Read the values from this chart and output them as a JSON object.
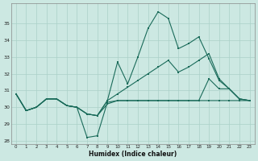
{
  "background_color": "#cce8e2",
  "grid_color": "#aad0c8",
  "line_color": "#1a6b5a",
  "xlim": [
    -0.5,
    23.5
  ],
  "ylim": [
    27.8,
    36.2
  ],
  "xticks": [
    0,
    1,
    2,
    3,
    4,
    5,
    6,
    7,
    8,
    9,
    10,
    11,
    12,
    13,
    14,
    15,
    16,
    17,
    18,
    19,
    20,
    21,
    22,
    23
  ],
  "yticks": [
    28,
    29,
    30,
    31,
    32,
    33,
    34,
    35
  ],
  "xlabel": "Humidex (Indice chaleur)",
  "lines": [
    [
      30.8,
      29.8,
      30.0,
      30.5,
      30.5,
      30.1,
      30.0,
      28.2,
      28.3,
      30.3,
      30.4,
      30.4,
      30.4,
      30.4,
      30.4,
      30.4,
      30.4,
      30.4,
      30.4,
      30.4,
      30.4,
      30.4,
      30.4,
      30.4
    ],
    [
      30.8,
      29.8,
      30.0,
      30.5,
      30.5,
      30.1,
      30.0,
      29.6,
      29.5,
      30.4,
      32.7,
      31.4,
      33.0,
      34.7,
      35.7,
      35.3,
      33.5,
      33.8,
      34.2,
      32.9,
      31.6,
      31.1,
      30.5,
      30.4
    ],
    [
      30.8,
      29.8,
      30.0,
      30.5,
      30.5,
      30.1,
      30.0,
      29.6,
      29.5,
      30.4,
      30.8,
      31.2,
      31.6,
      32.0,
      32.4,
      32.8,
      32.1,
      32.4,
      32.8,
      33.2,
      31.7,
      31.1,
      30.5,
      30.4
    ],
    [
      30.8,
      29.8,
      30.0,
      30.5,
      30.5,
      30.1,
      30.0,
      29.6,
      29.5,
      30.2,
      30.4,
      30.4,
      30.4,
      30.4,
      30.4,
      30.4,
      30.4,
      30.4,
      30.4,
      31.7,
      31.1,
      31.1,
      30.5,
      30.4
    ]
  ],
  "figsize": [
    3.2,
    2.0
  ],
  "dpi": 100
}
